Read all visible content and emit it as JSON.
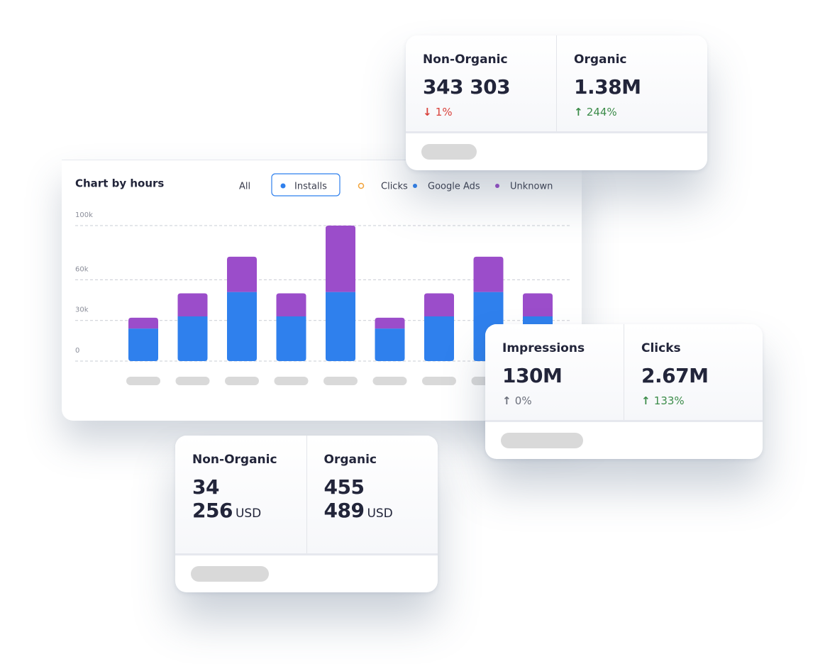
{
  "chart_data": {
    "type": "bar",
    "title": "Chart by hours",
    "filters": [
      "All",
      "Installs",
      "Clicks"
    ],
    "categories": [
      null,
      null,
      null,
      null,
      null,
      null,
      null,
      null,
      null
    ],
    "series": [
      {
        "name": "Google Ads",
        "color": "#2f80ed",
        "values": [
          24000,
          33000,
          51000,
          33000,
          51000,
          24000,
          33000,
          51000,
          33000
        ]
      },
      {
        "name": "Unknown",
        "color": "#9b4dca",
        "values": [
          8000,
          17000,
          26000,
          17000,
          49000,
          8000,
          17000,
          26000,
          17000
        ]
      }
    ],
    "stacked": true,
    "ylim": [
      0,
      100000
    ],
    "yticks": [
      {
        "value": 0,
        "label": "0"
      },
      {
        "value": 30000,
        "label": "30k"
      },
      {
        "value": 60000,
        "label": "60k"
      },
      {
        "value": 100000,
        "label": "100k"
      }
    ],
    "grid": true
  },
  "cards": [
    {
      "metrics": [
        {
          "label": "Non-Organic",
          "value": "343 303",
          "change": "1%",
          "trend": "down",
          "color": "#d9413b"
        },
        {
          "label": "Organic",
          "value": "1.38M",
          "change": "244%",
          "trend": "up",
          "color": "#3c8c4a"
        }
      ]
    },
    {
      "metrics": [
        {
          "label": "Impressions",
          "value": "130M",
          "change": "0%",
          "trend": "up",
          "color": "#6b6f7b"
        },
        {
          "label": "Clicks",
          "value": "2.67M",
          "change": "133%",
          "trend": "up",
          "color": "#3c8c4a"
        }
      ]
    },
    {
      "metrics": [
        {
          "label": "Non-Organic",
          "value": "34 256",
          "unit": "USD"
        },
        {
          "label": "Organic",
          "value": "455 489",
          "unit": "USD"
        }
      ]
    }
  ]
}
